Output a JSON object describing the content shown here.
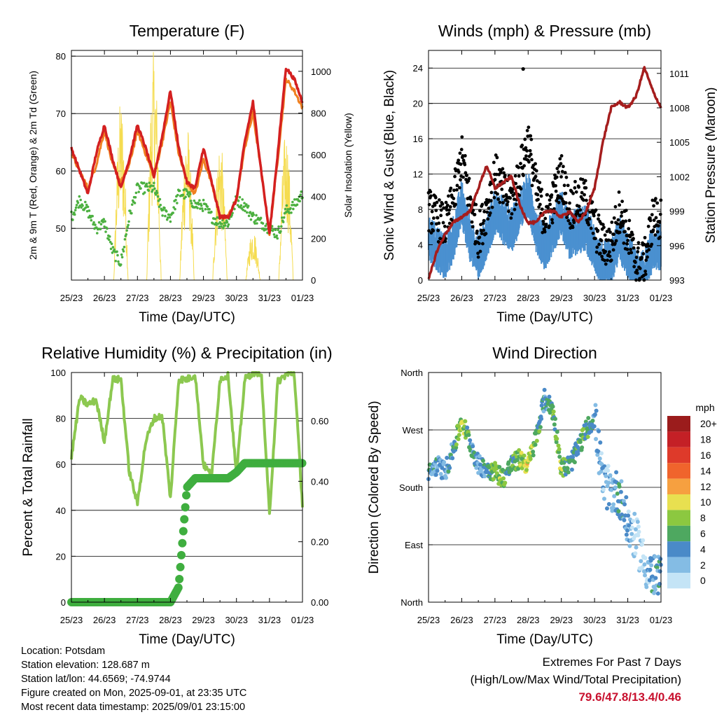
{
  "colors": {
    "temp2m": "#d42020",
    "temp9m": "#f08020",
    "dewpoint": "#4cb040",
    "solar": "#f5dc50",
    "wind": "#4a90d0",
    "gust": "#000000",
    "pressure": "#a51d1d",
    "rh": "#8cc850",
    "precip": "#3fae3f",
    "extremes": "#c8102e"
  },
  "x_ticks": [
    "25/23",
    "26/23",
    "27/23",
    "28/23",
    "29/23",
    "30/23",
    "31/23",
    "01/23"
  ],
  "temperature_panel": {
    "title": "Temperature (F)",
    "ylabel_left": "2m & 9m T (Red, Orange) & 2m Td (Green)",
    "ylabel_right": "Solar Insolation (Yellow)",
    "xlabel": "Time (Day/UTC)",
    "left_ticks": [
      "50",
      "60",
      "70",
      "80"
    ],
    "right_ticks": [
      "0",
      "200",
      "400",
      "600",
      "800",
      "1000"
    ]
  },
  "wind_panel": {
    "title": "Winds (mph) & Pressure (mb)",
    "ylabel_left": "Sonic Wind & Gust (Blue, Black)",
    "ylabel_right": "Station Pressure (Maroon)",
    "xlabel": "Time (Day/UTC)",
    "left_ticks": [
      "0",
      "4",
      "8",
      "12",
      "16",
      "20",
      "24"
    ],
    "right_ticks": [
      "993",
      "996",
      "999",
      "1002",
      "1005",
      "1008",
      "1011"
    ]
  },
  "rh_panel": {
    "title": "Relative Humidity (%) & Precipitation (in)",
    "ylabel_left": "Percent & Total Rainfall",
    "xlabel": "Time (Day/UTC)",
    "left_ticks": [
      "0",
      "20",
      "40",
      "60",
      "80",
      "100"
    ],
    "right_ticks": [
      "0.00",
      "0.20",
      "0.40",
      "0.60"
    ]
  },
  "dir_panel": {
    "title": "Wind Direction",
    "ylabel_left": "Direction (Colored By Speed)",
    "xlabel": "Time (Day/UTC)",
    "left_ticks": [
      "North",
      "East",
      "South",
      "West",
      "North"
    ],
    "legend_title": "mph",
    "legend_labels": [
      "20+",
      "18",
      "16",
      "14",
      "12",
      "10",
      "8",
      "6",
      "4",
      "2",
      "0"
    ],
    "legend_colors": [
      "#9b1c1c",
      "#c42026",
      "#de3a2a",
      "#f0642c",
      "#f6a040",
      "#e8e050",
      "#8cc840",
      "#4ea860",
      "#4a8ac8",
      "#84bce4",
      "#c4e4f6"
    ]
  },
  "footer": {
    "location": "Location: Potsdam",
    "elevation": "Station elevation: 128.687 m",
    "latlon": "Station lat/lon: 44.6569; -74.9744",
    "created": "Figure created on Mon, 2025-09-01, at 23:35 UTC",
    "recent": "Most recent data timestamp: 2025/09/01 23:15:00"
  },
  "extremes": {
    "title": "Extremes For Past 7 Days",
    "subtitle": "(High/Low/Max Wind/Total Precipitation)",
    "values": "79.6/47.8/13.4/0.46"
  },
  "chart_data": [
    {
      "type": "line",
      "title": "Temperature (F)",
      "xlabel": "Time (Day/UTC)",
      "x": [
        0,
        0.25,
        0.5,
        0.75,
        1,
        1.25,
        1.5,
        1.75,
        2,
        2.25,
        2.5,
        2.75,
        3,
        3.25,
        3.5,
        3.75,
        4,
        4.25,
        4.5,
        4.75,
        5,
        5.25,
        5.5,
        5.75,
        6,
        6.25,
        6.5,
        6.75,
        7
      ],
      "ylim": [
        41,
        81
      ],
      "series": [
        {
          "values": [
            64,
            60,
            56,
            63,
            68,
            62,
            57,
            62,
            68,
            64,
            59,
            66,
            74,
            64,
            58,
            57,
            64,
            58,
            52,
            52,
            55,
            65,
            72,
            60,
            49,
            63,
            78,
            76,
            72
          ]
        },
        {
          "values": [
            63,
            60,
            57,
            61,
            67,
            61,
            58,
            61,
            67,
            63,
            59,
            65,
            72,
            63,
            58,
            56,
            62,
            58,
            52,
            52,
            55,
            64,
            70,
            60,
            49,
            62,
            76,
            74,
            71
          ]
        },
        {
          "values": [
            52,
            55,
            53,
            50,
            51,
            46,
            44,
            52,
            57,
            57,
            57,
            53,
            52,
            56,
            56,
            54,
            54,
            52,
            51,
            51,
            55,
            54,
            52,
            51,
            50,
            49,
            53,
            54,
            56
          ]
        }
      ],
      "solar_ylim": [
        0,
        1100
      ],
      "solar_peaks": [
        {
          "day": 1.5,
          "value": 870
        },
        {
          "day": 2.5,
          "value": 1100
        },
        {
          "day": 3.5,
          "value": 760
        },
        {
          "day": 4.5,
          "value": 690
        },
        {
          "day": 5.5,
          "value": 250
        },
        {
          "day": 6.5,
          "value": 720
        }
      ]
    },
    {
      "type": "line",
      "title": "Winds (mph) & Pressure (mb)",
      "xlabel": "Time (Day/UTC)",
      "x": [
        0,
        0.25,
        0.5,
        0.75,
        1,
        1.25,
        1.5,
        1.75,
        2,
        2.25,
        2.5,
        2.75,
        3,
        3.25,
        3.5,
        3.75,
        4,
        4.25,
        4.5,
        4.75,
        5,
        5.25,
        5.5,
        5.75,
        6,
        6.25,
        6.5,
        6.75,
        7
      ],
      "ylim": [
        0,
        26
      ],
      "series": [
        {
          "values": [
            5,
            4,
            3,
            5,
            9,
            5,
            3,
            5,
            8,
            7,
            6,
            8,
            10,
            6,
            4,
            6,
            8,
            5,
            6,
            6,
            4,
            2,
            2,
            5,
            3,
            1,
            1,
            4,
            4
          ]
        },
        {
          "values": [
            8,
            7,
            6,
            9,
            14,
            9,
            5,
            8,
            12,
            10,
            9,
            12,
            16,
            10,
            7,
            9,
            12,
            8,
            9,
            9,
            6,
            4,
            4,
            8,
            5,
            2,
            2,
            7,
            7
          ]
        },
        {
          "values": [
            993,
            995.5,
            997,
            998,
            998.5,
            999,
            1001,
            1003,
            1001,
            1001.5,
            1002,
            999.5,
            998,
            998,
            999,
            999,
            998.5,
            999,
            998,
            999,
            1001,
            1005,
            1008,
            1008.5,
            1008,
            1009,
            1011.5,
            1009.5,
            1008
          ]
        }
      ],
      "pressure_ylim": [
        993,
        1013
      ]
    },
    {
      "type": "line",
      "title": "Relative Humidity (%) & Precipitation (in)",
      "xlabel": "Time (Day/UTC)",
      "x": [
        0,
        0.25,
        0.5,
        0.75,
        1,
        1.25,
        1.5,
        1.75,
        2,
        2.25,
        2.5,
        2.75,
        3,
        3.25,
        3.5,
        3.75,
        4,
        4.25,
        4.5,
        4.75,
        5,
        5.25,
        5.5,
        5.75,
        6,
        6.25,
        6.5,
        6.75,
        7
      ],
      "ylim": [
        0,
        100
      ],
      "series": [
        {
          "values": [
            63,
            89,
            86,
            88,
            70,
            97,
            97,
            57,
            43,
            70,
            80,
            81,
            45,
            97,
            97,
            99,
            60,
            55,
            97,
            99,
            55,
            97,
            100,
            100,
            38,
            96,
            99,
            100,
            42
          ]
        },
        {
          "values": [
            0,
            0,
            0,
            0,
            0,
            0,
            0,
            0,
            0,
            0,
            0,
            0,
            0,
            0.05,
            0.38,
            0.41,
            0.41,
            0.41,
            0.41,
            0.41,
            0.43,
            0.46,
            0.46,
            0.46,
            0.46,
            0.46,
            0.46,
            0.46,
            0.46
          ]
        }
      ],
      "precip_ylim": [
        0,
        0.76
      ]
    },
    {
      "type": "scatter",
      "title": "Wind Direction",
      "xlabel": "Time (Day/UTC)",
      "x": [
        0,
        0.25,
        0.5,
        0.75,
        1,
        1.25,
        1.5,
        1.75,
        2,
        2.25,
        2.5,
        2.75,
        3,
        3.25,
        3.5,
        3.75,
        4,
        4.25,
        4.5,
        4.75,
        5,
        5.25,
        5.5,
        5.75,
        6,
        6.25,
        6.5,
        6.75,
        7
      ],
      "ylim": [
        0,
        360
      ],
      "series": [
        {
          "values": [
            200,
            215,
            205,
            240,
            285,
            250,
            215,
            210,
            205,
            195,
            215,
            225,
            215,
            260,
            320,
            300,
            210,
            215,
            240,
            270,
            290,
            185,
            175,
            170,
            120,
            100,
            60,
            40,
            35
          ]
        }
      ]
    }
  ]
}
